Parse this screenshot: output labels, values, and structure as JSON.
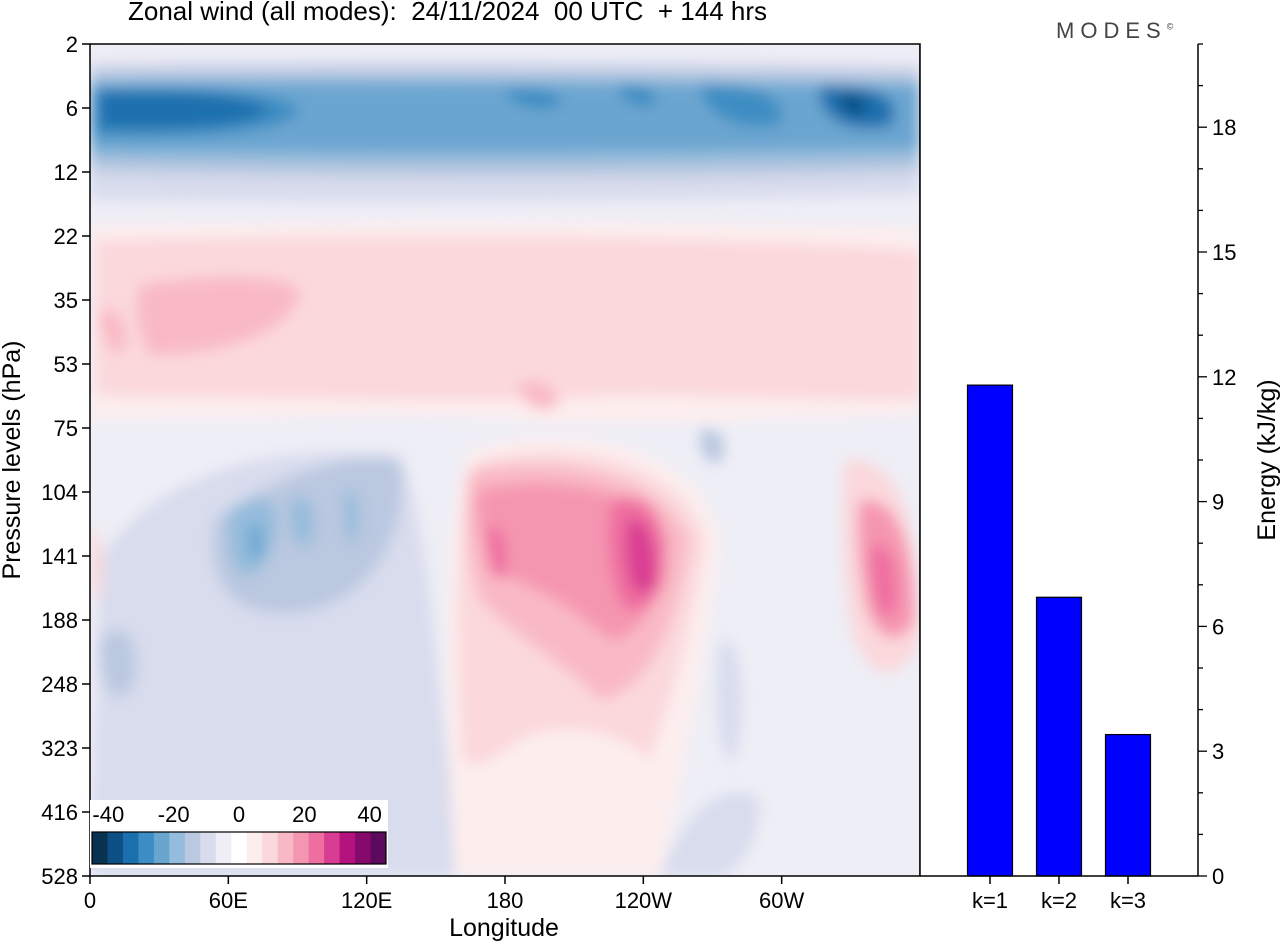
{
  "title": "Zonal wind (all modes):  24/11/2024  00 UTC  + 144 hrs",
  "logo": {
    "text": "MODES",
    "mark": "©"
  },
  "colors": {
    "positive_bar": "#0000ff",
    "diverging_scale": [
      "#08324f",
      "#0b4f84",
      "#1b6fae",
      "#3c8dc3",
      "#6aa5d0",
      "#95bcdc",
      "#bac8e0",
      "#d8dced",
      "#eeeef6",
      "#ffffff",
      "#fdeeee",
      "#fbd8dc",
      "#f9b9c4",
      "#f596b0",
      "#ef6ea0",
      "#d93d93",
      "#b4127e",
      "#860a6b",
      "#5c0a5e"
    ]
  },
  "chart_data": [
    {
      "type": "heatmap",
      "xlabel": "Longitude",
      "ylabel": "Pressure levels (hPa)",
      "x_ticks": [
        "0",
        "60E",
        "120E",
        "180",
        "120W",
        "60W"
      ],
      "x_tick_degrees": [
        0,
        60,
        120,
        180,
        240,
        300
      ],
      "xlim": [
        0,
        360
      ],
      "y_ticks": [
        "2",
        "6",
        "12",
        "22",
        "35",
        "53",
        "75",
        "104",
        "141",
        "188",
        "248",
        "323",
        "416",
        "528"
      ],
      "y_scale": "ordinal pressure levels, top = 2 hPa, bottom = 528 hPa",
      "colorbar": {
        "labels": [
          "-40",
          "-20",
          "0",
          "20",
          "40"
        ],
        "label_values": [
          -40,
          -20,
          0,
          20,
          40
        ],
        "range": [
          -45,
          45
        ],
        "step": 5,
        "placement": "bottom-left"
      },
      "features": [
        {
          "lon": 30,
          "level": 6,
          "u": -30,
          "desc": "easterly band"
        },
        {
          "lon": 190,
          "level": 6,
          "u": -25
        },
        {
          "lon": 330,
          "level": 6,
          "u": -38
        },
        {
          "lon": 60,
          "level": 35,
          "u": 12
        },
        {
          "lon": 75,
          "level": 141,
          "u": -22
        },
        {
          "lon": 180,
          "level": 141,
          "u": 22
        },
        {
          "lon": 240,
          "level": 141,
          "u": 30
        },
        {
          "lon": 345,
          "level": 141,
          "u": 28
        }
      ]
    },
    {
      "type": "bar",
      "categories": [
        "k=1",
        "k=2",
        "k=3"
      ],
      "values": [
        11.8,
        6.7,
        3.4
      ],
      "ylabel": "Energy (kJ/kg)",
      "ylim": [
        0,
        20
      ],
      "y_ticks": [
        0,
        3,
        6,
        9,
        12,
        15,
        18
      ],
      "axis_side": "right"
    }
  ]
}
